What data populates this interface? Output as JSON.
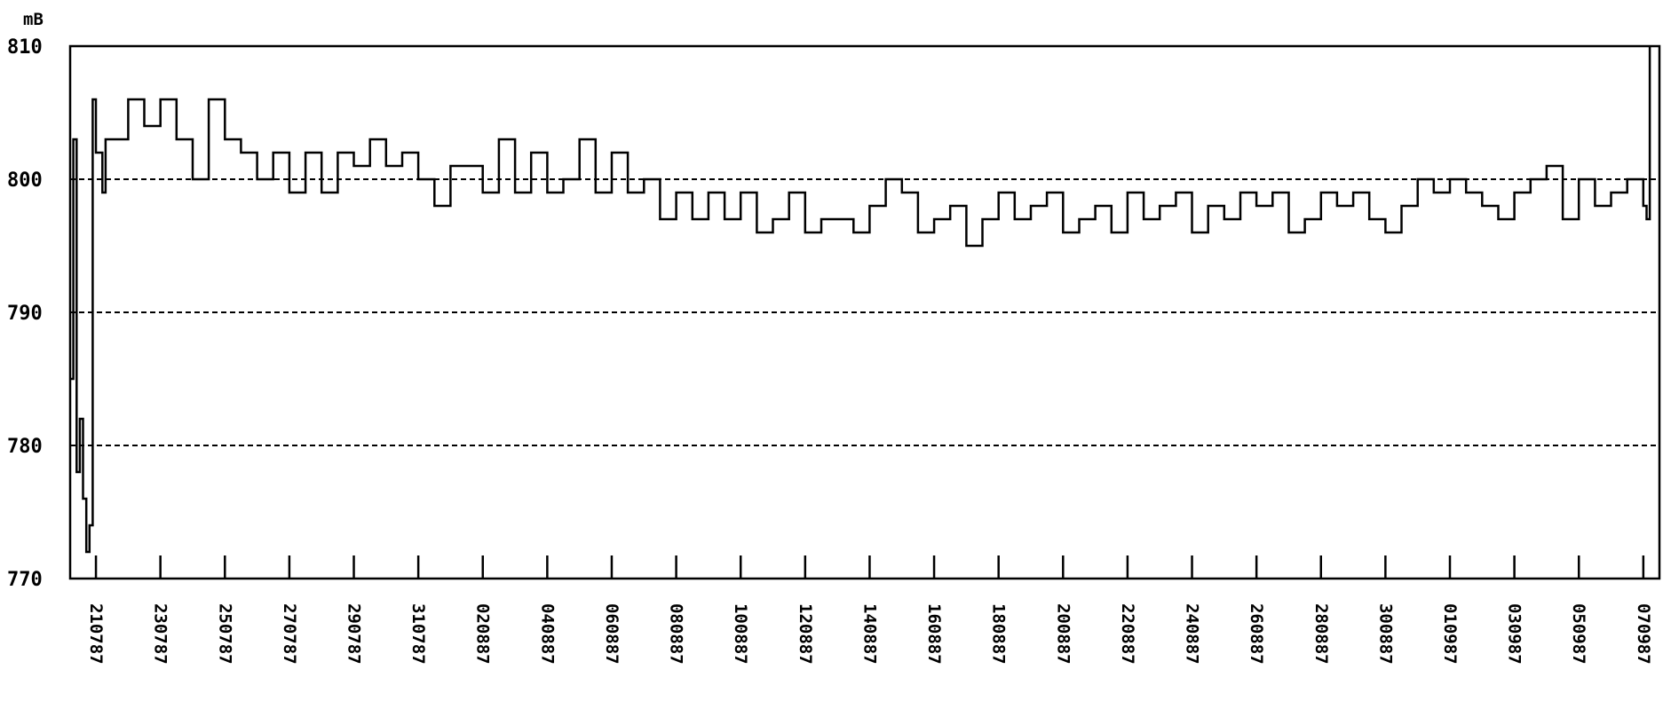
{
  "chart_data": {
    "type": "line",
    "title": "",
    "xlabel": "",
    "ylabel": "",
    "y_unit": "mB",
    "ylim": [
      770,
      810
    ],
    "y_ticks": [
      "810",
      "800",
      "790",
      "780",
      "770"
    ],
    "y_tick_values": [
      810,
      800,
      790,
      780,
      770
    ],
    "gridlines": [
      800,
      790,
      780
    ],
    "grid": "dashed horizontal",
    "legend": "none",
    "x_tick_labels": [
      "210787",
      "230787",
      "250787",
      "270787",
      "290787",
      "310787",
      "020887",
      "040887",
      "060887",
      "080887",
      "100887",
      "120887",
      "140887",
      "160887",
      "180887",
      "200887",
      "220887",
      "240887",
      "260887",
      "280887",
      "300887",
      "010987",
      "030987",
      "050987",
      "070987"
    ],
    "x_range_days": [
      -0.8,
      48.5
    ],
    "series": [
      {
        "x": [
          -0.8,
          -0.7,
          -0.6,
          -0.5,
          -0.4,
          -0.3,
          -0.2,
          -0.1,
          0.0,
          0.2,
          0.3,
          0.5,
          1.0,
          1.5,
          2.0,
          2.5,
          3.0,
          3.5,
          4.0,
          4.5,
          5.0,
          5.5,
          6.0,
          6.5,
          7.0,
          7.5,
          8.0,
          8.5,
          9.0,
          9.5,
          10.0,
          10.5,
          11.0,
          11.5,
          12.0,
          12.5,
          13.0,
          13.5,
          14.0,
          14.5,
          15.0,
          15.5,
          16.0,
          16.5,
          17.0,
          17.5,
          18.0,
          18.5,
          19.0,
          19.5,
          20.0,
          20.5,
          21.0,
          21.5,
          22.0,
          22.5,
          23.0,
          23.5,
          24.0,
          24.5,
          25.0,
          25.5,
          26.0,
          26.5,
          27.0,
          27.5,
          28.0,
          28.5,
          29.0,
          29.5,
          30.0,
          30.5,
          31.0,
          31.5,
          32.0,
          32.5,
          33.0,
          33.5,
          34.0,
          34.5,
          35.0,
          35.5,
          36.0,
          36.5,
          37.0,
          37.5,
          38.0,
          38.5,
          39.0,
          39.5,
          40.0,
          40.5,
          41.0,
          41.5,
          42.0,
          42.5,
          43.0,
          43.5,
          44.0,
          44.5,
          45.0,
          45.5,
          46.0,
          46.5,
          47.0,
          47.5,
          48.0,
          48.1,
          48.2
        ],
        "y": [
          785,
          803,
          778,
          782,
          776,
          772,
          774,
          806,
          802,
          799,
          803,
          803,
          806,
          804,
          806,
          803,
          800,
          806,
          803,
          802,
          800,
          802,
          799,
          802,
          799,
          802,
          801,
          803,
          801,
          802,
          800,
          798,
          801,
          801,
          799,
          803,
          799,
          802,
          799,
          800,
          803,
          799,
          802,
          799,
          800,
          797,
          799,
          797,
          799,
          797,
          799,
          796,
          797,
          799,
          796,
          797,
          797,
          796,
          798,
          800,
          799,
          796,
          797,
          798,
          795,
          797,
          799,
          797,
          798,
          799,
          796,
          797,
          798,
          796,
          799,
          797,
          798,
          799,
          796,
          798,
          797,
          799,
          798,
          799,
          796,
          797,
          799,
          798,
          799,
          797,
          796,
          798,
          800,
          799,
          800,
          799,
          798,
          797,
          799,
          800,
          801,
          797,
          800,
          798,
          799,
          800,
          798,
          797,
          810
        ],
        "color": "#000000"
      }
    ]
  }
}
